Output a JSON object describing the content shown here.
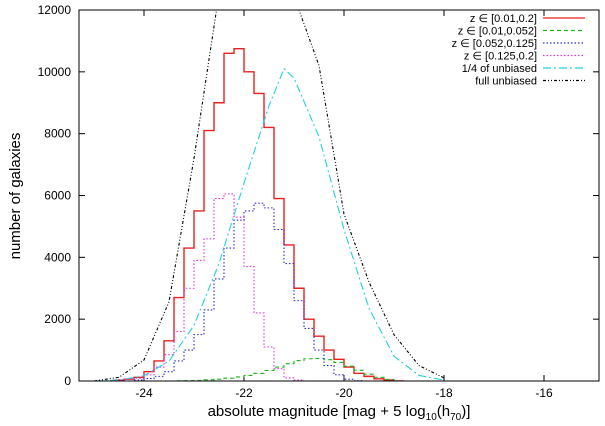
{
  "chart_data": {
    "type": "line",
    "xlabel": {
      "prefix": "absolute magnitude [mag + 5 log",
      "sub1": "10",
      "mid": "(h",
      "sub2": "70",
      "suffix": ")]"
    },
    "ylabel": "number of galaxies",
    "xlim": [
      -25.3,
      -14.9
    ],
    "ylim": [
      0,
      12000
    ],
    "x_ticks": [
      -24,
      -22,
      -20,
      -18,
      -16
    ],
    "x_tick_labels": [
      "-24",
      "-22",
      "-20",
      "-18",
      "-16"
    ],
    "y_ticks": [
      0,
      2000,
      4000,
      6000,
      8000,
      10000,
      12000
    ],
    "y_tick_labels": [
      "0",
      "2000",
      "4000",
      "6000",
      "8000",
      "10000",
      "12000"
    ],
    "bin_edges": [
      -24.6,
      -24.4,
      -24.2,
      -24.0,
      -23.8,
      -23.6,
      -23.4,
      -23.2,
      -23.0,
      -22.8,
      -22.6,
      -22.4,
      -22.2,
      -22.0,
      -21.8,
      -21.6,
      -21.4,
      -21.2,
      -21.0,
      -20.8,
      -20.6,
      -20.4,
      -20.2,
      -20.0,
      -19.8,
      -19.6,
      -19.4,
      -19.2,
      -19.0,
      -18.8
    ],
    "legend_position": "top-right",
    "series": [
      {
        "name": "z ∈ [0.01,0.2]",
        "kind": "step",
        "color": "#e8211e",
        "dash": "solid",
        "values": [
          30,
          60,
          120,
          300,
          650,
          1300,
          2700,
          4300,
          5500,
          8100,
          9000,
          10600,
          10750,
          10000,
          9300,
          8200,
          5900,
          4400,
          3000,
          2000,
          1450,
          1000,
          700,
          450,
          250,
          150,
          70,
          30,
          0
        ]
      },
      {
        "name": "z ∈ [0.01,0.052]",
        "kind": "step",
        "color": "#19b519",
        "dash": "dash",
        "values": [
          0,
          0,
          0,
          0,
          0,
          0,
          5,
          10,
          20,
          40,
          60,
          90,
          130,
          180,
          250,
          340,
          450,
          560,
          660,
          720,
          730,
          690,
          600,
          480,
          350,
          220,
          120,
          50,
          0
        ]
      },
      {
        "name": "z ∈ [0.052,0.125]",
        "kind": "step",
        "color": "#2a2ae0",
        "dash": "dot",
        "values": [
          0,
          0,
          30,
          80,
          150,
          300,
          650,
          1000,
          1500,
          2300,
          3300,
          4300,
          5200,
          5500,
          5750,
          5600,
          4900,
          3800,
          2600,
          1700,
          1000,
          500,
          200,
          60,
          10,
          0,
          0,
          0,
          0
        ]
      },
      {
        "name": "z ∈ [0.125,0.2]",
        "kind": "step",
        "color": "#e030e0",
        "dash": "dot",
        "values": [
          30,
          60,
          90,
          200,
          450,
          850,
          1600,
          3000,
          3900,
          4600,
          5900,
          6050,
          5300,
          3700,
          2200,
          1100,
          400,
          100,
          30,
          0,
          0,
          0,
          0,
          0,
          0,
          0,
          0,
          0,
          0
        ]
      },
      {
        "name": "1/4 of unbiased",
        "kind": "curve",
        "color": "#22d0e0",
        "dash": "dashdot",
        "x": [
          -25.0,
          -24.5,
          -24.0,
          -23.5,
          -23.0,
          -22.5,
          -22.0,
          -21.5,
          -21.2,
          -21.0,
          -20.5,
          -20.0,
          -19.5,
          -19.0,
          -18.5,
          -18.0
        ],
        "y": [
          0,
          30,
          170,
          640,
          1800,
          3800,
          6400,
          8900,
          10100,
          9800,
          7900,
          4900,
          2350,
          800,
          180,
          30
        ]
      },
      {
        "name": "full unbiased",
        "kind": "curve",
        "color": "#000000",
        "dash": "dashdotdot",
        "x": [
          -25.0,
          -24.5,
          -24.0,
          -23.5,
          -23.0,
          -22.7,
          -22.55,
          -20.9,
          -20.5,
          -20.0,
          -19.5,
          -19.0,
          -18.5,
          -18.0
        ],
        "y": [
          0,
          120,
          680,
          2560,
          7200,
          10400,
          12000,
          12000,
          10200,
          5400,
          3200,
          1500,
          500,
          100
        ]
      }
    ]
  }
}
